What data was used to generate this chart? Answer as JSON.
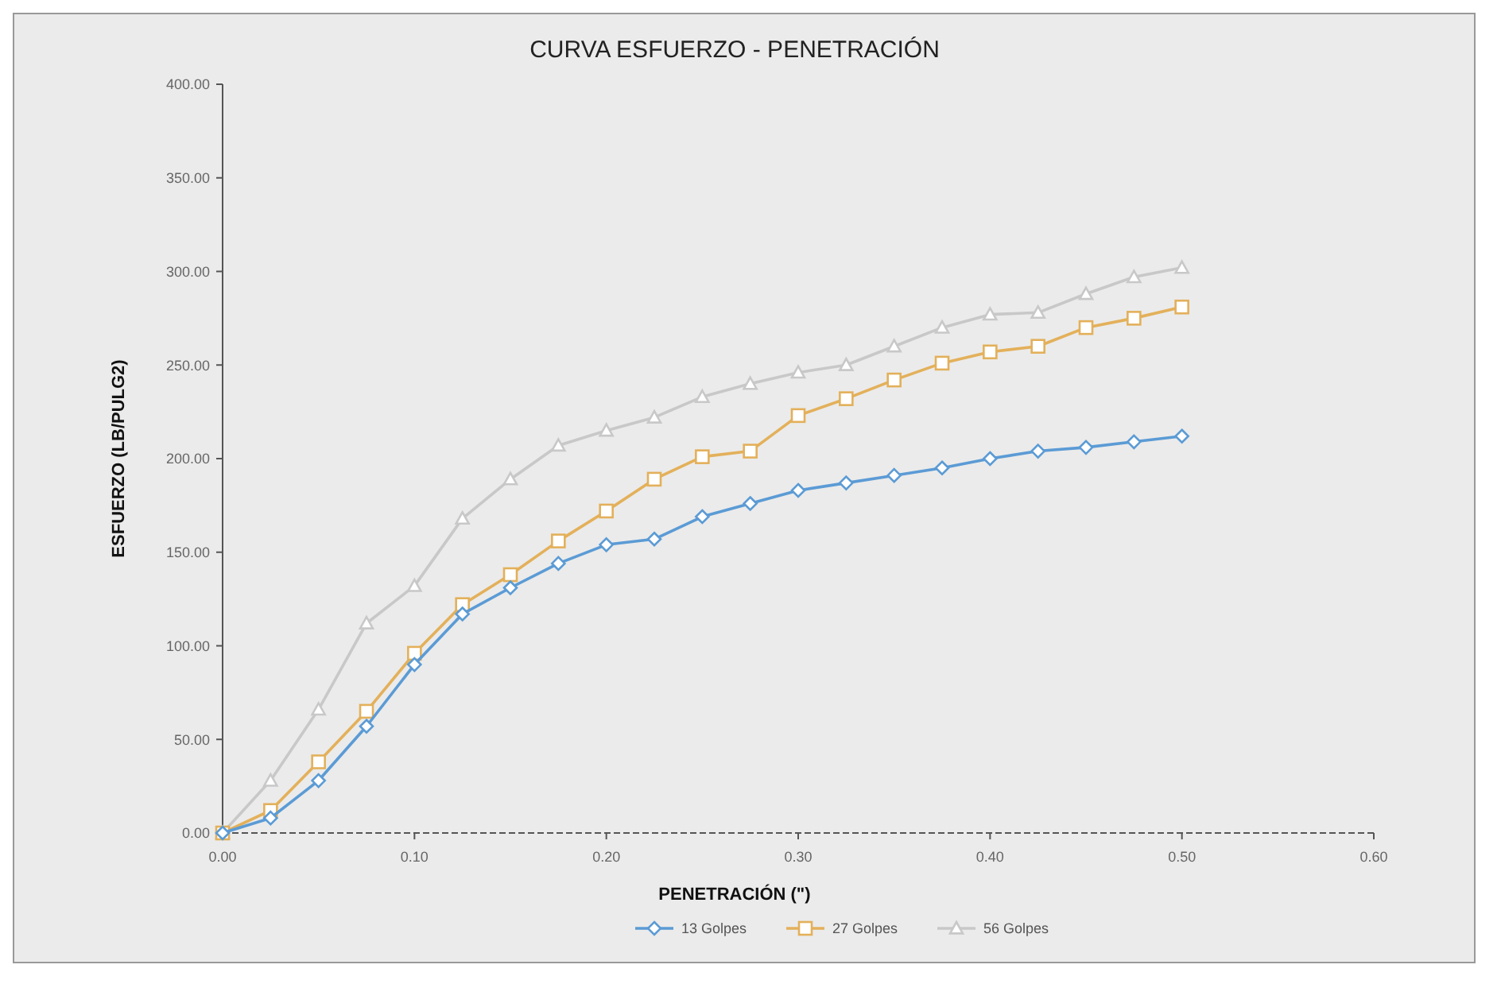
{
  "chart_data": {
    "type": "line",
    "title": "CURVA ESFUERZO - PENETRACIÓN",
    "xlabel": "PENETRACIÓN (\")",
    "ylabel": "ESFUERZO (LB/PULG2)",
    "x": [
      0,
      0.025,
      0.05,
      0.075,
      0.1,
      0.125,
      0.15,
      0.175,
      0.2,
      0.225,
      0.25,
      0.275,
      0.3,
      0.325,
      0.35,
      0.375,
      0.4,
      0.425,
      0.45,
      0.475,
      0.5
    ],
    "series": [
      {
        "name": "13 Golpes",
        "color": "#5b9bd5",
        "marker": "diamond",
        "values": [
          0,
          8,
          28,
          57,
          90,
          117,
          131,
          144,
          154,
          157,
          169,
          176,
          183,
          187,
          191,
          195,
          200,
          204,
          206,
          209,
          212
        ]
      },
      {
        "name": "27 Golpes",
        "color": "#e3b05a",
        "marker": "square",
        "values": [
          0,
          12,
          38,
          65,
          96,
          122,
          138,
          156,
          172,
          189,
          201,
          204,
          223,
          232,
          242,
          251,
          257,
          260,
          270,
          275,
          281
        ]
      },
      {
        "name": "56 Golpes",
        "color": "#c8c8c8",
        "marker": "triangle",
        "values": [
          0,
          28,
          66,
          112,
          132,
          168,
          189,
          207,
          215,
          222,
          233,
          240,
          246,
          250,
          260,
          270,
          277,
          278,
          288,
          297,
          302
        ]
      }
    ],
    "xlim": [
      0,
      0.6
    ],
    "xticks": [
      {
        "value": 0,
        "label": "0.00"
      },
      {
        "value": 0.1,
        "label": "0.10"
      },
      {
        "value": 0.2,
        "label": "0.20"
      },
      {
        "value": 0.3,
        "label": "0.30"
      },
      {
        "value": 0.4,
        "label": "0.40"
      },
      {
        "value": 0.5,
        "label": "0.50"
      },
      {
        "value": 0.6,
        "label": "0.60"
      }
    ],
    "ylim": [
      0,
      400
    ],
    "yticks": [
      {
        "value": 0,
        "label": "0.00"
      },
      {
        "value": 50,
        "label": "50.00"
      },
      {
        "value": 100,
        "label": "100.00"
      },
      {
        "value": 150,
        "label": "150.00"
      },
      {
        "value": 200,
        "label": "200.00"
      },
      {
        "value": 250,
        "label": "250.00"
      },
      {
        "value": 300,
        "label": "300.00"
      },
      {
        "value": 350,
        "label": "350.00"
      },
      {
        "value": 400,
        "label": "400.00"
      }
    ],
    "grid": false,
    "legend": "bottom",
    "line_style": "solid"
  }
}
